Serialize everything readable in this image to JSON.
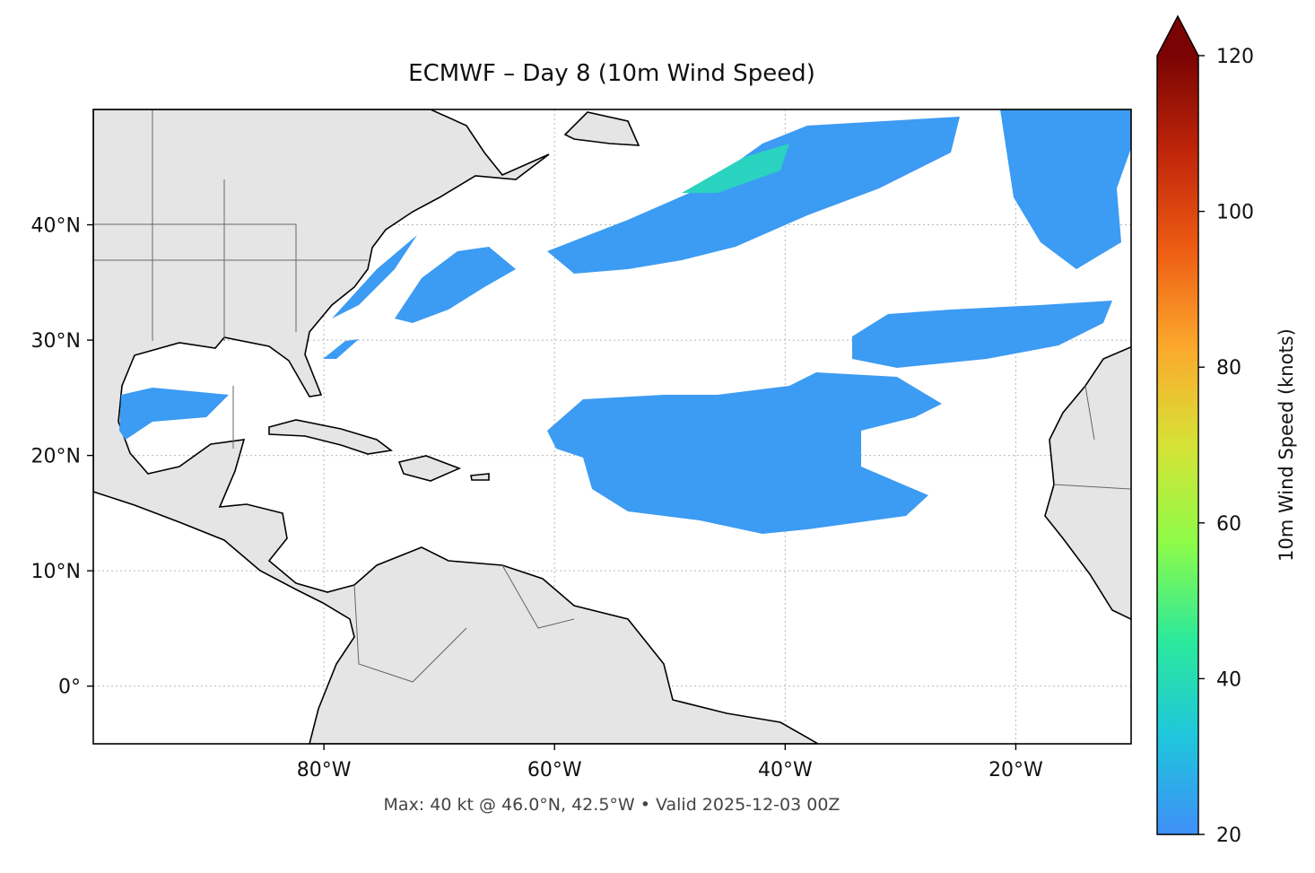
{
  "chart_data": {
    "type": "map",
    "title": "ECMWF – Day 8 (10m Wind Speed)",
    "footer": "Max: 40 kt @ 46.0°N, 42.5°W • Valid 2025-12-03 00Z",
    "xlim": [
      -100,
      -10
    ],
    "ylim": [
      -5,
      50
    ],
    "xticks": [
      {
        "value": -80,
        "label": "80°W"
      },
      {
        "value": -60,
        "label": "60°W"
      },
      {
        "value": -40,
        "label": "40°W"
      },
      {
        "value": -20,
        "label": "20°W"
      }
    ],
    "yticks": [
      {
        "value": 0,
        "label": "0°"
      },
      {
        "value": 10,
        "label": "10°N"
      },
      {
        "value": 20,
        "label": "20°N"
      },
      {
        "value": 30,
        "label": "30°N"
      },
      {
        "value": 40,
        "label": "40°N"
      }
    ],
    "grid": true,
    "colorbar": {
      "label": "10m Wind Speed (knots)",
      "lim": [
        20,
        120
      ],
      "ticks": [
        20,
        40,
        60,
        80,
        100,
        120
      ],
      "colors": [
        "#3f8ff7",
        "#1fc6dc",
        "#2ce99b",
        "#8efb48",
        "#d6e236",
        "#fca92d",
        "#ee5d14",
        "#c0260a",
        "#7a0403"
      ]
    }
  }
}
